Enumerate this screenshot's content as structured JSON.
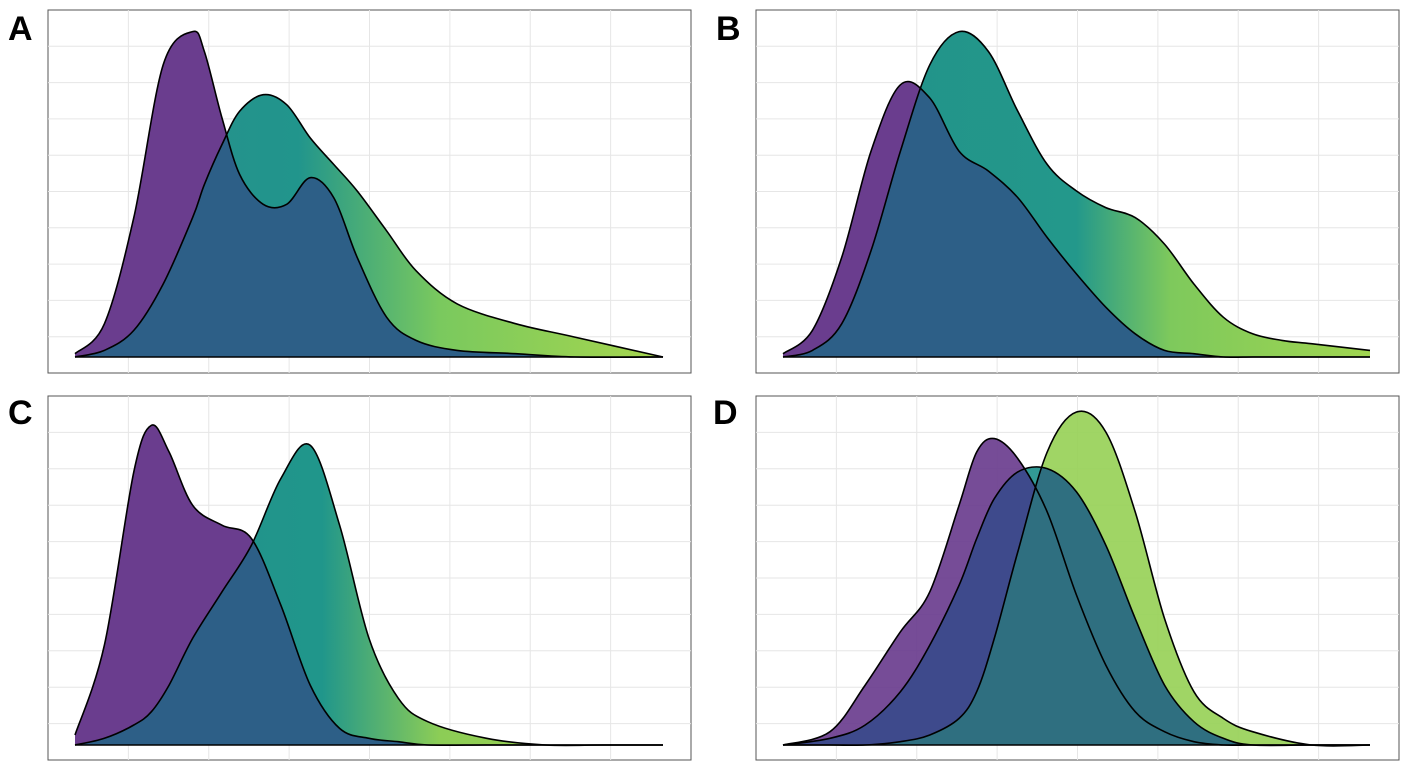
{
  "panels": [
    {
      "label": "A"
    },
    {
      "label": "B"
    },
    {
      "label": "C"
    },
    {
      "label": "D"
    }
  ],
  "colors": {
    "purple": "#6a3d8e",
    "teal": "#21918c",
    "blue": "#2d5f87",
    "green": "#98d158",
    "outline": "#000000",
    "grid": "#e6e6e6"
  },
  "chart_data": [
    {
      "type": "area",
      "panel": "A",
      "title": "",
      "xlabel": "",
      "ylabel": "",
      "grid": true,
      "legend": "none",
      "xlim": [
        0,
        1
      ],
      "ylim": [
        0,
        1
      ],
      "x": [
        0,
        0.05,
        0.1,
        0.15,
        0.2,
        0.22,
        0.25,
        0.28,
        0.32,
        0.36,
        0.4,
        0.44,
        0.48,
        0.53,
        0.58,
        0.65,
        0.75,
        0.85,
        1
      ],
      "series": [
        {
          "values": [
            0.01,
            0.1,
            0.42,
            0.88,
            0.98,
            0.92,
            0.72,
            0.55,
            0.46,
            0.46,
            0.54,
            0.48,
            0.3,
            0.12,
            0.05,
            0.02,
            0.01,
            0.0,
            0.0
          ]
        },
        {
          "values": [
            0.0,
            0.02,
            0.08,
            0.22,
            0.42,
            0.52,
            0.64,
            0.74,
            0.79,
            0.76,
            0.66,
            0.58,
            0.5,
            0.38,
            0.26,
            0.16,
            0.1,
            0.06,
            0.0
          ]
        }
      ]
    },
    {
      "type": "area",
      "panel": "B",
      "title": "",
      "xlabel": "",
      "ylabel": "",
      "grid": true,
      "legend": "none",
      "xlim": [
        0,
        1
      ],
      "ylim": [
        0,
        1
      ],
      "x": [
        0,
        0.05,
        0.1,
        0.15,
        0.2,
        0.25,
        0.3,
        0.35,
        0.4,
        0.45,
        0.5,
        0.55,
        0.6,
        0.65,
        0.7,
        0.75,
        0.8,
        0.85,
        0.9,
        1
      ],
      "series": [
        {
          "values": [
            0.01,
            0.08,
            0.3,
            0.62,
            0.82,
            0.78,
            0.62,
            0.56,
            0.48,
            0.36,
            0.25,
            0.15,
            0.07,
            0.02,
            0.01,
            0.0,
            0.0,
            0.0,
            0.0,
            0.0
          ]
        },
        {
          "values": [
            0.0,
            0.02,
            0.1,
            0.32,
            0.62,
            0.88,
            0.98,
            0.92,
            0.74,
            0.58,
            0.5,
            0.45,
            0.42,
            0.34,
            0.22,
            0.12,
            0.07,
            0.05,
            0.04,
            0.02
          ]
        }
      ]
    },
    {
      "type": "area",
      "panel": "C",
      "title": "",
      "xlabel": "",
      "ylabel": "",
      "grid": true,
      "legend": "none",
      "xlim": [
        0,
        1
      ],
      "ylim": [
        0,
        1
      ],
      "x": [
        0,
        0.05,
        0.1,
        0.13,
        0.16,
        0.2,
        0.25,
        0.3,
        0.35,
        0.4,
        0.45,
        0.5,
        0.55,
        0.6,
        0.7,
        0.8,
        0.9,
        1
      ],
      "series": [
        {
          "values": [
            0.03,
            0.3,
            0.82,
            0.96,
            0.88,
            0.72,
            0.66,
            0.62,
            0.42,
            0.18,
            0.05,
            0.02,
            0.01,
            0.0,
            0.0,
            0.0,
            0.0,
            0.0
          ]
        },
        {
          "values": [
            0.0,
            0.02,
            0.06,
            0.1,
            0.18,
            0.32,
            0.46,
            0.6,
            0.8,
            0.9,
            0.66,
            0.32,
            0.14,
            0.07,
            0.02,
            0.0,
            0.0,
            0.0
          ]
        }
      ]
    },
    {
      "type": "area",
      "panel": "D",
      "title": "",
      "xlabel": "",
      "ylabel": "",
      "grid": true,
      "legend": "none",
      "xlim": [
        0,
        1
      ],
      "ylim": [
        0,
        1
      ],
      "x": [
        0,
        0.08,
        0.14,
        0.2,
        0.25,
        0.3,
        0.33,
        0.36,
        0.4,
        0.45,
        0.5,
        0.55,
        0.6,
        0.65,
        0.7,
        0.75,
        0.8,
        0.9,
        1
      ],
      "series": [
        {
          "values": [
            0.0,
            0.04,
            0.18,
            0.34,
            0.46,
            0.72,
            0.88,
            0.92,
            0.86,
            0.7,
            0.45,
            0.24,
            0.1,
            0.04,
            0.01,
            0.0,
            0.0,
            0.0,
            0.0
          ]
        },
        {
          "values": [
            0.0,
            0.02,
            0.06,
            0.16,
            0.3,
            0.48,
            0.62,
            0.74,
            0.82,
            0.83,
            0.76,
            0.6,
            0.38,
            0.18,
            0.07,
            0.02,
            0.0,
            0.0,
            0.0
          ]
        },
        {
          "values": [
            0.0,
            0.0,
            0.0,
            0.01,
            0.03,
            0.08,
            0.16,
            0.32,
            0.58,
            0.88,
            1.0,
            0.94,
            0.7,
            0.38,
            0.16,
            0.08,
            0.04,
            0.0,
            0.0
          ]
        }
      ]
    }
  ]
}
